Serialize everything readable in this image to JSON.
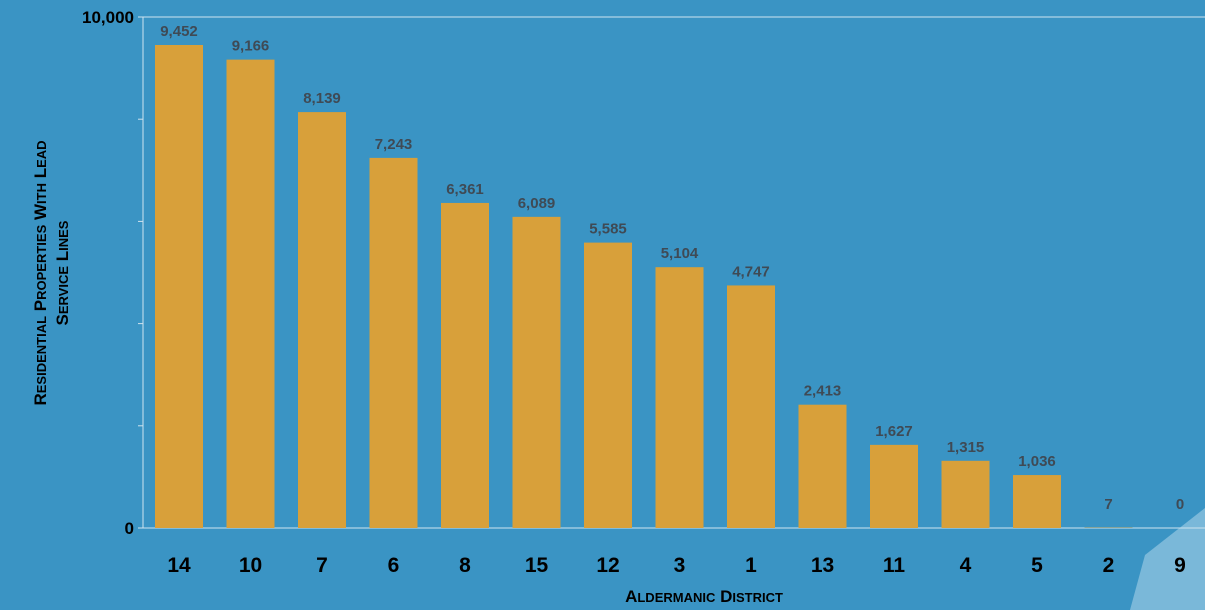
{
  "colors": {
    "background": "#3a94c4",
    "bar": "#d8a03a",
    "axis": "#cfe3ef",
    "value_label": "#3f4a55",
    "text": "#000000",
    "corner_shape": "#7ab8d9"
  },
  "chart_data": {
    "type": "bar",
    "title": "",
    "xlabel": "Aldermanic District",
    "ylabel": "Residential Properties with Lead Service Lines",
    "ylabel_lines": [
      "Residential Properties with Lead",
      "Service Lines"
    ],
    "categories": [
      "14",
      "10",
      "7",
      "6",
      "8",
      "15",
      "12",
      "3",
      "1",
      "13",
      "11",
      "4",
      "5",
      "2",
      "9"
    ],
    "values": [
      9452,
      9166,
      8139,
      7243,
      6361,
      6089,
      5585,
      5104,
      4747,
      2413,
      1627,
      1315,
      1036,
      7,
      0
    ],
    "value_labels": [
      "9,452",
      "9,166",
      "8,139",
      "7,243",
      "6,361",
      "6,089",
      "5,585",
      "5,104",
      "4,747",
      "2,413",
      "1,627",
      "1,315",
      "1,036",
      "7",
      "0"
    ],
    "ylim": [
      0,
      10000
    ],
    "ytick_labels": [
      "0",
      "10,000"
    ],
    "grid": false,
    "legend": "none"
  }
}
